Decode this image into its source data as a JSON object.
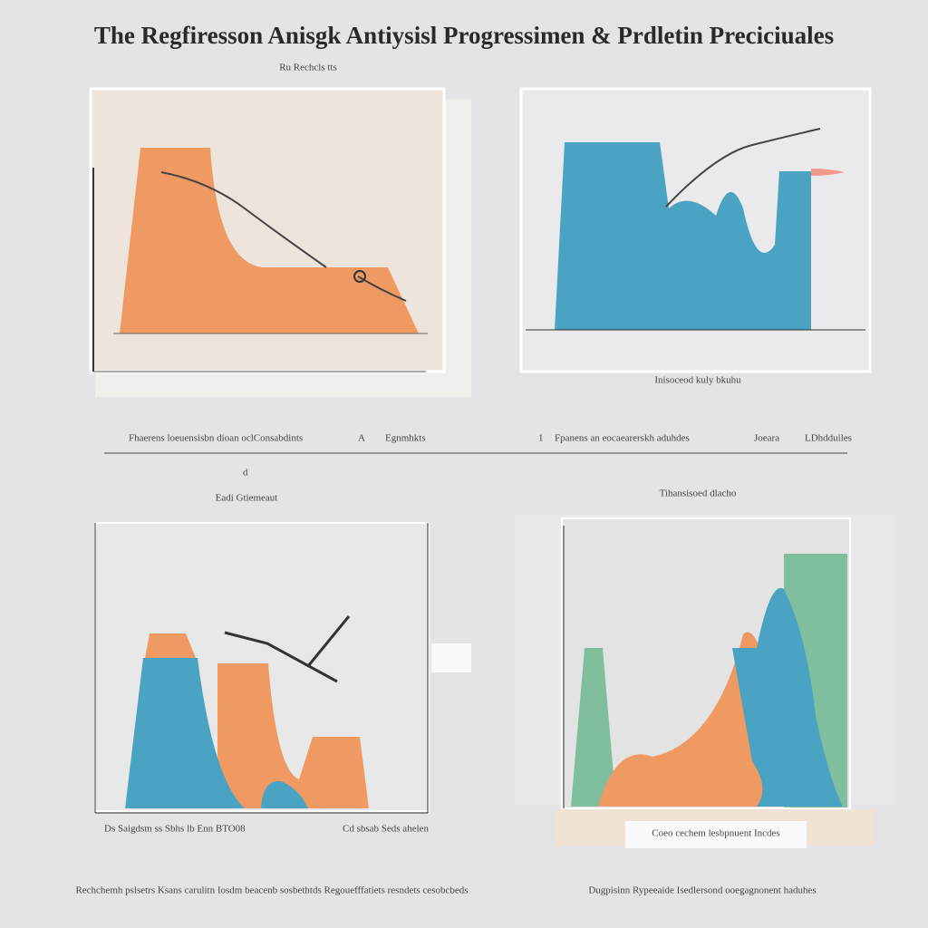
{
  "header": {
    "title": "The Regfiresson Anisgk Antiysisl Progressimen & Prdletin Preciciuales"
  },
  "panels": [
    {
      "label": "Ru Rechcls tts"
    },
    {
      "caption": "Inisoceod kuly bkuhu"
    },
    {
      "label": "Eadi Gtiemeaut",
      "axis_left": "Ds Saigdsm ss Sbhs lb Enn BTO08",
      "axis_right": "Cd sbsab Seds ahelen"
    },
    {
      "label": "Tihansisoed dlacho",
      "caption": "Coeo cechem lesbpnuent Incdes"
    }
  ],
  "divider": {
    "left": [
      "Fhaerens loeuensisbn dioan oclConsabdints",
      "A",
      "Egnmhkts"
    ],
    "right": [
      "1",
      "Fpanens an eocaearerskh aduhdes",
      "Joeara",
      "LDhdduiles"
    ],
    "mark": "d"
  },
  "footer": {
    "left": "Rechchemh pslsetrs Ksans carulitn Iosdm beacenb sosbethtds Regouefffatiets resndets cesobcbeds",
    "right": "Dugpisinn Rypeeaide Isedlersond ooegagnonent haduhes"
  }
}
